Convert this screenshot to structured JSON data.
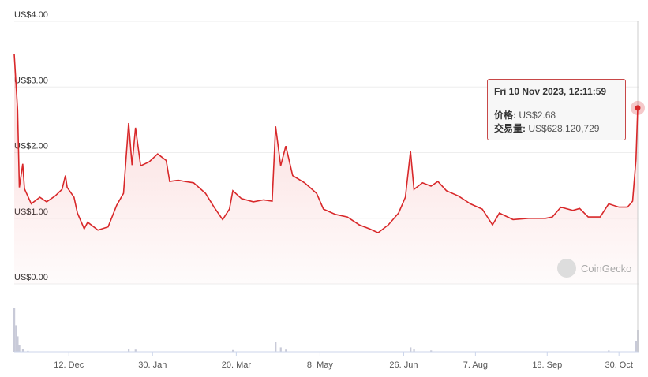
{
  "chart_data": {
    "type": "line",
    "title": "",
    "xlabel": "",
    "ylabel": "",
    "y_ticks": [
      "US$4.00",
      "US$3.00",
      "US$2.00",
      "US$1.00",
      "US$0.00"
    ],
    "ylim": [
      0,
      4
    ],
    "x_ticks": [
      {
        "label": "12. Dec",
        "date": "2022-12-12"
      },
      {
        "label": "30. Jan",
        "date": "2023-01-30"
      },
      {
        "label": "20. Mar",
        "date": "2023-03-20"
      },
      {
        "label": "8. May",
        "date": "2023-05-08"
      },
      {
        "label": "26. Jun",
        "date": "2023-06-26"
      },
      {
        "label": "7. Aug",
        "date": "2023-08-07"
      },
      {
        "label": "18. Sep",
        "date": "2023-09-18"
      },
      {
        "label": "30. Oct",
        "date": "2023-10-30"
      }
    ],
    "xlim": [
      "2022-11-10",
      "2023-11-10"
    ],
    "grid": true,
    "line_color": "#d8282a",
    "price": [
      [
        "2022-11-10",
        3.5
      ],
      [
        "2022-11-12",
        2.65
      ],
      [
        "2022-11-13",
        1.47
      ],
      [
        "2022-11-15",
        1.83
      ],
      [
        "2022-11-16",
        1.45
      ],
      [
        "2022-11-20",
        1.22
      ],
      [
        "2022-11-25",
        1.32
      ],
      [
        "2022-11-29",
        1.25
      ],
      [
        "2022-12-04",
        1.34
      ],
      [
        "2022-12-08",
        1.44
      ],
      [
        "2022-12-10",
        1.65
      ],
      [
        "2022-12-11",
        1.47
      ],
      [
        "2022-12-15",
        1.32
      ],
      [
        "2022-12-17",
        1.08
      ],
      [
        "2022-12-21",
        0.84
      ],
      [
        "2022-12-23",
        0.94
      ],
      [
        "2022-12-29",
        0.82
      ],
      [
        "2023-01-04",
        0.87
      ],
      [
        "2023-01-09",
        1.2
      ],
      [
        "2023-01-13",
        1.38
      ],
      [
        "2023-01-16",
        2.45
      ],
      [
        "2023-01-18",
        1.81
      ],
      [
        "2023-01-20",
        2.38
      ],
      [
        "2023-01-23",
        1.8
      ],
      [
        "2023-01-28",
        1.86
      ],
      [
        "2023-02-02",
        1.98
      ],
      [
        "2023-02-07",
        1.88
      ],
      [
        "2023-02-09",
        1.56
      ],
      [
        "2023-02-14",
        1.58
      ],
      [
        "2023-02-18",
        1.56
      ],
      [
        "2023-02-23",
        1.54
      ],
      [
        "2023-03-02",
        1.38
      ],
      [
        "2023-03-07",
        1.17
      ],
      [
        "2023-03-12",
        0.98
      ],
      [
        "2023-03-16",
        1.14
      ],
      [
        "2023-03-18",
        1.42
      ],
      [
        "2023-03-23",
        1.3
      ],
      [
        "2023-03-30",
        1.25
      ],
      [
        "2023-04-05",
        1.28
      ],
      [
        "2023-04-10",
        1.26
      ],
      [
        "2023-04-12",
        2.4
      ],
      [
        "2023-04-15",
        1.8
      ],
      [
        "2023-04-18",
        2.1
      ],
      [
        "2023-04-22",
        1.65
      ],
      [
        "2023-04-29",
        1.54
      ],
      [
        "2023-05-06",
        1.38
      ],
      [
        "2023-05-10",
        1.14
      ],
      [
        "2023-05-17",
        1.06
      ],
      [
        "2023-05-24",
        1.02
      ],
      [
        "2023-05-31",
        0.9
      ],
      [
        "2023-06-06",
        0.84
      ],
      [
        "2023-06-11",
        0.78
      ],
      [
        "2023-06-17",
        0.9
      ],
      [
        "2023-06-23",
        1.08
      ],
      [
        "2023-06-27",
        1.32
      ],
      [
        "2023-06-30",
        2.02
      ],
      [
        "2023-07-02",
        1.44
      ],
      [
        "2023-07-07",
        1.54
      ],
      [
        "2023-07-12",
        1.49
      ],
      [
        "2023-07-16",
        1.56
      ],
      [
        "2023-07-21",
        1.42
      ],
      [
        "2023-07-28",
        1.34
      ],
      [
        "2023-08-04",
        1.22
      ],
      [
        "2023-08-11",
        1.14
      ],
      [
        "2023-08-17",
        0.9
      ],
      [
        "2023-08-21",
        1.08
      ],
      [
        "2023-08-29",
        0.98
      ],
      [
        "2023-09-07",
        1.0
      ],
      [
        "2023-09-17",
        1.0
      ],
      [
        "2023-09-21",
        1.02
      ],
      [
        "2023-09-26",
        1.17
      ],
      [
        "2023-10-03",
        1.12
      ],
      [
        "2023-10-07",
        1.15
      ],
      [
        "2023-10-12",
        1.02
      ],
      [
        "2023-10-19",
        1.02
      ],
      [
        "2023-10-24",
        1.22
      ],
      [
        "2023-10-30",
        1.17
      ],
      [
        "2023-11-04",
        1.17
      ],
      [
        "2023-11-07",
        1.26
      ],
      [
        "2023-11-09",
        1.9
      ],
      [
        "2023-11-10",
        2.68
      ]
    ],
    "volume_relative": [
      [
        "2022-11-10",
        1.0
      ],
      [
        "2022-11-11",
        0.6
      ],
      [
        "2022-11-12",
        0.35
      ],
      [
        "2022-11-13",
        0.15
      ],
      [
        "2022-11-15",
        0.06
      ],
      [
        "2022-11-18",
        0.02
      ],
      [
        "2023-01-16",
        0.07
      ],
      [
        "2023-01-20",
        0.05
      ],
      [
        "2023-03-18",
        0.04
      ],
      [
        "2023-04-12",
        0.22
      ],
      [
        "2023-04-15",
        0.1
      ],
      [
        "2023-04-18",
        0.05
      ],
      [
        "2023-06-30",
        0.1
      ],
      [
        "2023-07-02",
        0.06
      ],
      [
        "2023-07-12",
        0.03
      ],
      [
        "2023-10-24",
        0.03
      ],
      [
        "2023-11-09",
        0.25
      ],
      [
        "2023-11-10",
        0.5
      ]
    ]
  },
  "tooltip": {
    "title": "Fri 10 Nov 2023, 12:11:59",
    "price_label": "价格:",
    "price_value": "US$2.68",
    "volume_label": "交易量:",
    "volume_value": "US$628,120,729"
  },
  "watermark": "CoinGecko"
}
